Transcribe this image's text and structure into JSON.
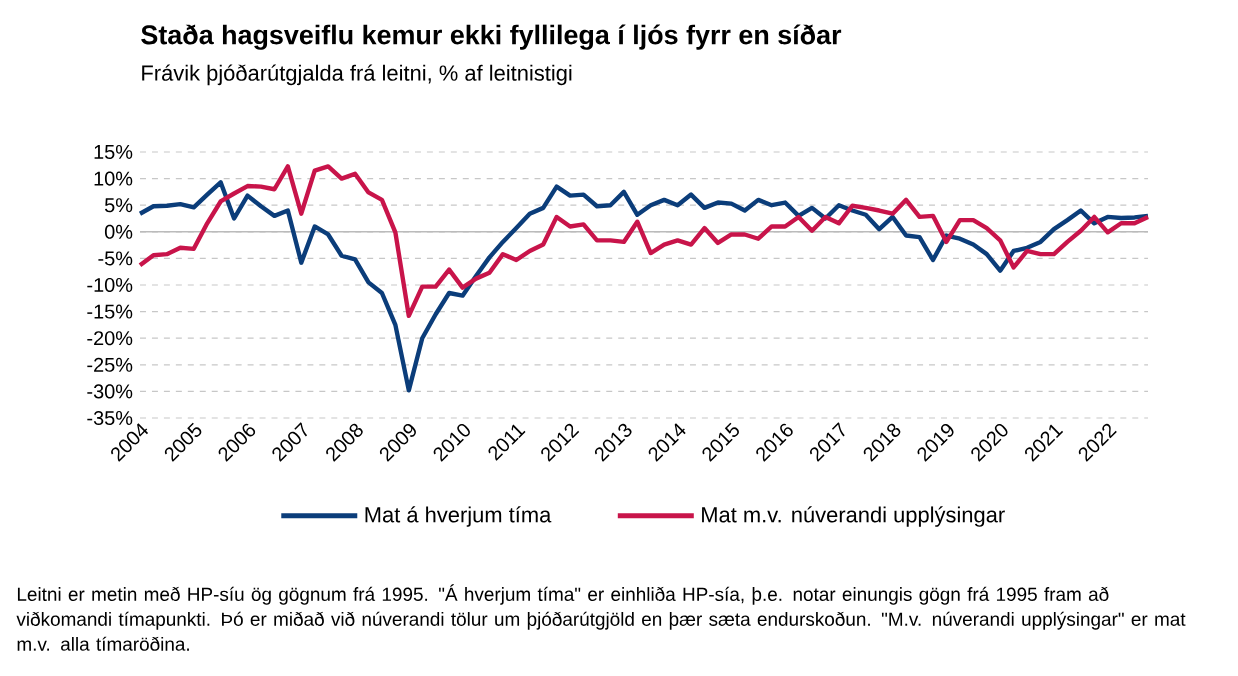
{
  "chart_data": {
    "type": "line",
    "title": "Staða hagsveiflu kemur ekki fyllilega í ljós fyrr en síðar",
    "subtitle": "Frávik þjóðarútgjalda frá leitni, % af leitnistigi",
    "x": [
      2004.0,
      2004.25,
      2004.5,
      2004.75,
      2005.0,
      2005.25,
      2005.5,
      2005.75,
      2006.0,
      2006.25,
      2006.5,
      2006.75,
      2007.0,
      2007.25,
      2007.5,
      2007.75,
      2008.0,
      2008.25,
      2008.5,
      2008.75,
      2009.0,
      2009.25,
      2009.5,
      2009.75,
      2010.0,
      2010.25,
      2010.5,
      2010.75,
      2011.0,
      2011.25,
      2011.5,
      2011.75,
      2012.0,
      2012.25,
      2012.5,
      2012.75,
      2013.0,
      2013.25,
      2013.5,
      2013.75,
      2014.0,
      2014.25,
      2014.5,
      2014.75,
      2015.0,
      2015.25,
      2015.5,
      2015.75,
      2016.0,
      2016.25,
      2016.5,
      2016.75,
      2017.0,
      2017.25,
      2017.5,
      2017.75,
      2018.0,
      2018.25,
      2018.5,
      2018.75,
      2019.0,
      2019.25,
      2019.5,
      2019.75,
      2020.0,
      2020.25,
      2020.5,
      2020.75,
      2021.0,
      2021.25,
      2021.5,
      2021.75,
      2022.0,
      2022.25,
      2022.5,
      2022.75
    ],
    "series": [
      {
        "name": "Mat á hverjum tíma",
        "color": "#0b3d7a",
        "values": [
          3.4,
          4.8,
          4.9,
          5.2,
          4.6,
          7.0,
          9.3,
          2.5,
          6.8,
          4.8,
          3.0,
          4.0,
          -5.8,
          1.0,
          -0.5,
          -4.5,
          -5.2,
          -9.5,
          -11.5,
          -17.5,
          -29.8,
          -20.0,
          -15.5,
          -11.5,
          -12.0,
          -8.3,
          -4.8,
          -1.9,
          0.7,
          3.4,
          4.5,
          8.5,
          6.8,
          7.0,
          4.8,
          5.0,
          7.5,
          3.2,
          5.0,
          6.0,
          5.0,
          7.0,
          4.5,
          5.5,
          5.3,
          4.0,
          6.0,
          5.0,
          5.5,
          3.0,
          4.5,
          2.5,
          5.0,
          4.0,
          3.2,
          0.5,
          2.8,
          -0.7,
          -1.0,
          -5.3,
          -0.7,
          -1.3,
          -2.4,
          -4.2,
          -7.3,
          -3.6,
          -3.0,
          -1.9,
          0.5,
          2.2,
          4.0,
          1.6,
          2.8,
          2.6,
          2.7,
          3.0
        ]
      },
      {
        "name": "Mat m.v. núverandi upplýsingar",
        "color": "#c8144a",
        "values": [
          -6.3,
          -4.4,
          -4.2,
          -3.0,
          -3.2,
          1.6,
          5.7,
          7.2,
          8.6,
          8.5,
          8.0,
          12.3,
          3.4,
          11.5,
          12.3,
          10.0,
          10.9,
          7.4,
          6.0,
          -0.1,
          -15.8,
          -10.3,
          -10.3,
          -7.1,
          -10.5,
          -8.8,
          -7.7,
          -4.2,
          -5.3,
          -3.6,
          -2.4,
          2.8,
          1.0,
          1.4,
          -1.6,
          -1.6,
          -1.9,
          1.9,
          -4.0,
          -2.4,
          -1.6,
          -2.4,
          0.7,
          -2.1,
          -0.5,
          -0.5,
          -1.3,
          1.0,
          1.0,
          2.8,
          0.2,
          2.8,
          1.6,
          4.9,
          4.5,
          4.0,
          3.4,
          6.0,
          2.8,
          3.0,
          -1.9,
          2.2,
          2.2,
          0.7,
          -1.6,
          -6.7,
          -3.6,
          -4.2,
          -4.2,
          -1.9,
          0.2,
          2.8,
          -0.1,
          1.6,
          1.6,
          2.8
        ]
      }
    ],
    "xlim": [
      2004,
      2022.75
    ],
    "xticks": [
      2004,
      2005,
      2006,
      2007,
      2008,
      2009,
      2010,
      2011,
      2012,
      2013,
      2014,
      2015,
      2016,
      2017,
      2018,
      2019,
      2020,
      2021,
      2022
    ],
    "ylim": [
      -35,
      15
    ],
    "yticks": [
      {
        "value": -35,
        "label": "-35%"
      },
      {
        "value": -30,
        "label": "-30%"
      },
      {
        "value": -25,
        "label": "-25%"
      },
      {
        "value": -20,
        "label": "-20%"
      },
      {
        "value": -15,
        "label": "-15%"
      },
      {
        "value": -10,
        "label": "-10%"
      },
      {
        "value": -5,
        "label": "-5%"
      },
      {
        "value": 0,
        "label": "0%"
      },
      {
        "value": 5,
        "label": "5%"
      },
      {
        "value": 10,
        "label": "10%"
      },
      {
        "value": 15,
        "label": "15%"
      }
    ],
    "grid": "y",
    "ref_lines": [
      {
        "axis": "y",
        "value": 0,
        "color": "#bbbbbb"
      }
    ],
    "legend": "bottom",
    "annotations": [
      "Leitni er metin með HP-síu ög gögnum frá 1995. \"Á hverjum tíma\" er einhliða HP-sía, þ.e. notar einungis gögn frá 1995 fram að viðkomandi tímapunkti. Þó er miðað við núverandi tölur um þjóðarútgjöld en þær sæta endurskoðun. \"M.v. núverandi upplýsingar\" er mat m.v. alla tímaröðina."
    ]
  }
}
